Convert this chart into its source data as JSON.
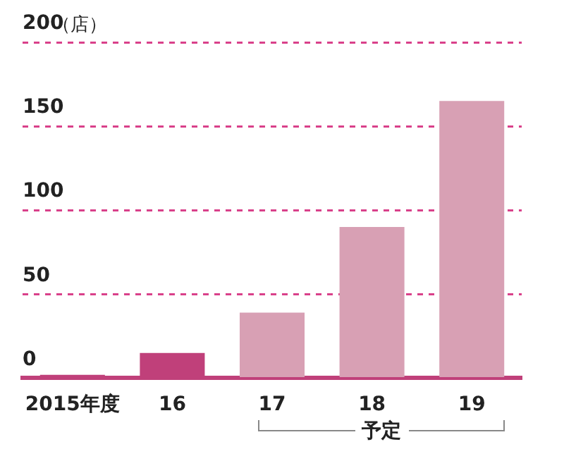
{
  "chart_data": {
    "type": "bar",
    "ylabel": "（店）",
    "categories": [
      "2015年度",
      "16",
      "17",
      "18",
      "19"
    ],
    "values": [
      2,
      15,
      39,
      90,
      165
    ],
    "colors": [
      "#c0407a",
      "#c0407a",
      "#d8a0b4",
      "#d8a0b4",
      "#d8a0b4"
    ],
    "ylim": [
      0,
      200
    ],
    "yticks": [
      0,
      50,
      100,
      150,
      200
    ],
    "grid": "y",
    "annotations": [
      "予定"
    ]
  }
}
